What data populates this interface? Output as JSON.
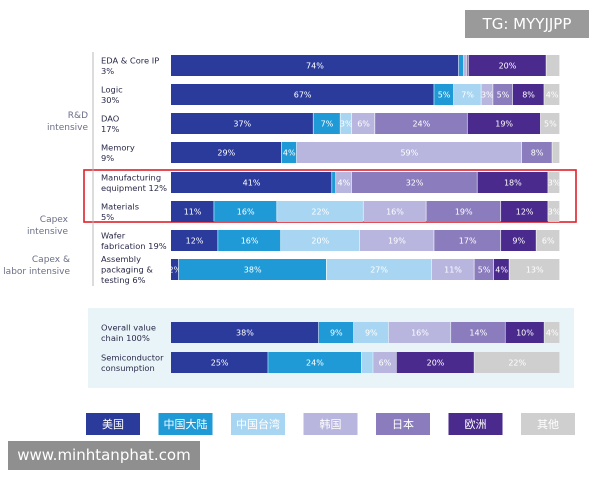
{
  "watermarks": {
    "top": "TG: MYYJJPP",
    "bottom": "www.minhtanphat.com"
  },
  "chart_data": {
    "type": "bar",
    "orientation": "horizontal",
    "stacked": true,
    "normalized_percent": true,
    "legend_placement": "bottom",
    "legend": [
      {
        "name": "美国",
        "color": "#2b3b9c"
      },
      {
        "name": "中国大陆",
        "color": "#1f9ad6"
      },
      {
        "name": "中国台湾",
        "color": "#a8d6f2"
      },
      {
        "name": "韩国",
        "color": "#b8b6de"
      },
      {
        "name": "日本",
        "color": "#8b7dbd"
      },
      {
        "name": "欧洲",
        "color": "#4a2a8c"
      },
      {
        "name": "其他",
        "color": "#cfcfcf"
      }
    ],
    "group_labels": [
      {
        "lines": [
          "R&D",
          "intensive"
        ]
      },
      {
        "lines": [
          "Capex",
          "intensive"
        ]
      },
      {
        "lines": [
          "Capex &",
          "labor intensive"
        ]
      }
    ],
    "rows": [
      {
        "label_lines": [
          "EDA & Core IP",
          "3%"
        ],
        "highlight": false,
        "segments": [
          {
            "v": 74,
            "l": "74%",
            "c": 0
          },
          {
            "v": 1.3,
            "l": "",
            "c": 1
          },
          {
            "v": 0.7,
            "l": "",
            "c": 3
          },
          {
            "v": 0.5,
            "l": "",
            "c": 4
          },
          {
            "v": 20,
            "l": "20%",
            "c": 5
          },
          {
            "v": 3.5,
            "l": "",
            "c": 6
          }
        ]
      },
      {
        "label_lines": [
          "Logic",
          "30%"
        ],
        "highlight": false,
        "segments": [
          {
            "v": 67,
            "l": "67%",
            "c": 0
          },
          {
            "v": 5,
            "l": "5%",
            "c": 1
          },
          {
            "v": 7,
            "l": "7%",
            "c": 2
          },
          {
            "v": 3,
            "l": "3%",
            "c": 3
          },
          {
            "v": 5,
            "l": "5%",
            "c": 4
          },
          {
            "v": 8,
            "l": "8%",
            "c": 5
          },
          {
            "v": 4,
            "l": "4%",
            "c": 6
          }
        ]
      },
      {
        "label_lines": [
          "DAO",
          "17%"
        ],
        "highlight": false,
        "segments": [
          {
            "v": 37,
            "l": "37%",
            "c": 0
          },
          {
            "v": 7,
            "l": "7%",
            "c": 1
          },
          {
            "v": 3,
            "l": "3%",
            "c": 2
          },
          {
            "v": 6,
            "l": "6%",
            "c": 3
          },
          {
            "v": 24,
            "l": "24%",
            "c": 4
          },
          {
            "v": 19,
            "l": "19%",
            "c": 5
          },
          {
            "v": 5,
            "l": "5%",
            "c": 6
          }
        ]
      },
      {
        "label_lines": [
          "Memory",
          "9%"
        ],
        "highlight": false,
        "segments": [
          {
            "v": 29,
            "l": "29%",
            "c": 0
          },
          {
            "v": 4,
            "l": "4%",
            "c": 1
          },
          {
            "v": 59,
            "l": "59%",
            "c": 3
          },
          {
            "v": 8,
            "l": "8%",
            "c": 4
          },
          {
            "v": 2,
            "l": "",
            "c": 6
          }
        ]
      },
      {
        "label_lines": [
          "Manufacturing",
          "equipment 12%"
        ],
        "highlight": true,
        "segments": [
          {
            "v": 41,
            "l": "41%",
            "c": 0
          },
          {
            "v": 1,
            "l": "",
            "c": 1
          },
          {
            "v": 4,
            "l": "4%",
            "c": 3
          },
          {
            "v": 32,
            "l": "32%",
            "c": 4
          },
          {
            "v": 18,
            "l": "18%",
            "c": 5
          },
          {
            "v": 3,
            "l": "3%",
            "c": 6
          }
        ]
      },
      {
        "label_lines": [
          "Materials",
          "5%"
        ],
        "highlight": true,
        "segments": [
          {
            "v": 11,
            "l": "11%",
            "c": 0
          },
          {
            "v": 16,
            "l": "16%",
            "c": 1
          },
          {
            "v": 22,
            "l": "22%",
            "c": 2
          },
          {
            "v": 16,
            "l": "16%",
            "c": 3
          },
          {
            "v": 19,
            "l": "19%",
            "c": 4
          },
          {
            "v": 12,
            "l": "12%",
            "c": 5
          },
          {
            "v": 3,
            "l": "3%",
            "c": 6
          }
        ]
      },
      {
        "label_lines": [
          "Wafer",
          "fabrication 19%"
        ],
        "highlight": false,
        "segments": [
          {
            "v": 12,
            "l": "12%",
            "c": 0
          },
          {
            "v": 16,
            "l": "16%",
            "c": 1
          },
          {
            "v": 20,
            "l": "20%",
            "c": 2
          },
          {
            "v": 19,
            "l": "19%",
            "c": 3
          },
          {
            "v": 17,
            "l": "17%",
            "c": 4
          },
          {
            "v": 9,
            "l": "9%",
            "c": 5
          },
          {
            "v": 6,
            "l": "6%",
            "c": 6
          }
        ]
      },
      {
        "label_lines": [
          "Assembly",
          "packaging &",
          "testing 6%"
        ],
        "highlight": false,
        "segments": [
          {
            "v": 2,
            "l": "2%",
            "c": 0
          },
          {
            "v": 38,
            "l": "38%",
            "c": 1
          },
          {
            "v": 27,
            "l": "27%",
            "c": 2
          },
          {
            "v": 11,
            "l": "11%",
            "c": 3
          },
          {
            "v": 5,
            "l": "5%",
            "c": 4
          },
          {
            "v": 4,
            "l": "4%",
            "c": 5
          },
          {
            "v": 13,
            "l": "13%",
            "c": 6
          }
        ]
      },
      {
        "label_lines": [
          "Overall value",
          "chain 100%"
        ],
        "highlight": false,
        "segments": [
          {
            "v": 38,
            "l": "38%",
            "c": 0
          },
          {
            "v": 9,
            "l": "9%",
            "c": 1
          },
          {
            "v": 9,
            "l": "9%",
            "c": 2
          },
          {
            "v": 16,
            "l": "16%",
            "c": 3
          },
          {
            "v": 14,
            "l": "14%",
            "c": 4
          },
          {
            "v": 10,
            "l": "10%",
            "c": 5
          },
          {
            "v": 4,
            "l": "4%",
            "c": 6
          }
        ]
      },
      {
        "label_lines": [
          "Semiconductor",
          "consumption"
        ],
        "highlight": false,
        "segments": [
          {
            "v": 25,
            "l": "25%",
            "c": 0
          },
          {
            "v": 24,
            "l": "24%",
            "c": 1
          },
          {
            "v": 3,
            "l": "",
            "c": 2
          },
          {
            "v": 6,
            "l": "6%",
            "c": 3
          },
          {
            "v": 20,
            "l": "20%",
            "c": 5
          },
          {
            "v": 22,
            "l": "22%",
            "c": 6
          }
        ]
      }
    ]
  }
}
